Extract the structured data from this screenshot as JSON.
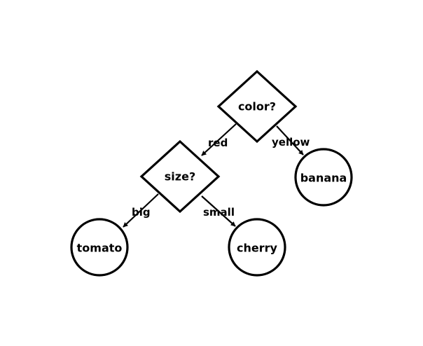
{
  "diagram": {
    "nodes": [
      {
        "id": "color",
        "shape": "diamond",
        "label": "color?"
      },
      {
        "id": "size",
        "shape": "diamond",
        "label": "size?"
      },
      {
        "id": "banana",
        "shape": "circle",
        "label": "banana"
      },
      {
        "id": "tomato",
        "shape": "circle",
        "label": "tomato"
      },
      {
        "id": "cherry",
        "shape": "circle",
        "label": "cherry"
      }
    ],
    "edges": [
      {
        "from": "color",
        "to": "size",
        "label": "red"
      },
      {
        "from": "color",
        "to": "banana",
        "label": "yellow"
      },
      {
        "from": "size",
        "to": "tomato",
        "label": "big"
      },
      {
        "from": "size",
        "to": "cherry",
        "label": "small"
      }
    ]
  }
}
